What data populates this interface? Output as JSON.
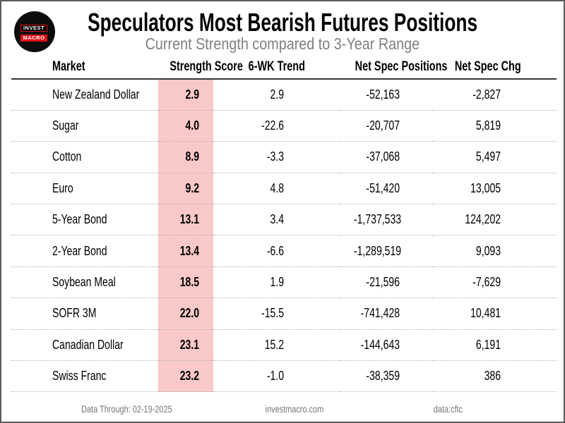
{
  "header": {
    "title": "Speculators Most Bearish Futures Positions",
    "subtitle": "Current Strength compared to 3-Year Range",
    "logo": {
      "line1": "INVEST",
      "line2": "MACRO"
    }
  },
  "table": {
    "columns": [
      "Market",
      "Strength Score",
      "6-WK Trend",
      "Net Spec Positions",
      "Net Spec Chg"
    ],
    "rows": [
      {
        "market": "New Zealand Dollar",
        "score": "2.9",
        "trend": "2.9",
        "positions": "-52,163",
        "chg": "-2,827"
      },
      {
        "market": "Sugar",
        "score": "4.0",
        "trend": "-22.6",
        "positions": "-20,707",
        "chg": "5,819"
      },
      {
        "market": "Cotton",
        "score": "8.9",
        "trend": "-3.3",
        "positions": "-37,068",
        "chg": "5,497"
      },
      {
        "market": "Euro",
        "score": "9.2",
        "trend": "4.8",
        "positions": "-51,420",
        "chg": "13,005"
      },
      {
        "market": "5-Year Bond",
        "score": "13.1",
        "trend": "3.4",
        "positions": "-1,737,533",
        "chg": "124,202"
      },
      {
        "market": "2-Year Bond",
        "score": "13.4",
        "trend": "-6.6",
        "positions": "-1,289,519",
        "chg": "9,093"
      },
      {
        "market": "Soybean Meal",
        "score": "18.5",
        "trend": "1.9",
        "positions": "-21,596",
        "chg": "-7,629"
      },
      {
        "market": "SOFR 3M",
        "score": "22.0",
        "trend": "-15.5",
        "positions": "-741,428",
        "chg": "10,481"
      },
      {
        "market": "Canadian Dollar",
        "score": "23.1",
        "trend": "15.2",
        "positions": "-144,643",
        "chg": "6,191"
      },
      {
        "market": "Swiss Franc",
        "score": "23.2",
        "trend": "-1.0",
        "positions": "-38,359",
        "chg": "386"
      }
    ]
  },
  "footer": {
    "data_through": "Data Through: 02-19-2025",
    "site": "investmacro.com",
    "source": "data:cftc"
  },
  "colors": {
    "score_highlight": "#f9c8c8",
    "logo_red": "#e01119",
    "subtitle_gray": "#7f7f7f",
    "footer_gray": "#757575",
    "row_divider": "#b4b4b4",
    "header_rule": "#383838"
  },
  "chart_data": {
    "type": "table",
    "title": "Speculators Most Bearish Futures Positions",
    "subtitle": "Current Strength compared to 3-Year Range",
    "columns": [
      "Market",
      "Strength Score",
      "6-WK Trend",
      "Net Spec Positions",
      "Net Spec Chg"
    ],
    "rows": [
      [
        "New Zealand Dollar",
        2.9,
        2.9,
        -52163,
        -2827
      ],
      [
        "Sugar",
        4.0,
        -22.6,
        -20707,
        5819
      ],
      [
        "Cotton",
        8.9,
        -3.3,
        -37068,
        5497
      ],
      [
        "Euro",
        9.2,
        4.8,
        -51420,
        13005
      ],
      [
        "5-Year Bond",
        13.1,
        3.4,
        -1737533,
        124202
      ],
      [
        "2-Year Bond",
        13.4,
        -6.6,
        -1289519,
        9093
      ],
      [
        "Soybean Meal",
        18.5,
        1.9,
        -21596,
        -7629
      ],
      [
        "SOFR 3M",
        22.0,
        -15.5,
        -741428,
        10481
      ],
      [
        "Canadian Dollar",
        23.1,
        15.2,
        -144643,
        6191
      ],
      [
        "Swiss Franc",
        23.2,
        -1.0,
        -38359,
        386
      ]
    ],
    "notes": "Strength Score column highlighted pink; data through 02-19-2025; source CFTC via investmacro.com"
  }
}
